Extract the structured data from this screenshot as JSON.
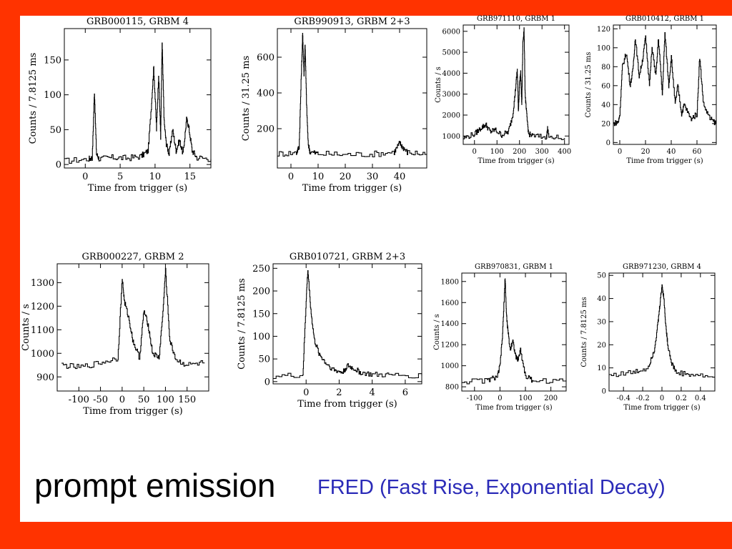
{
  "slide": {
    "title": "prompt emission",
    "subtitle": "FRED (Fast Rise, Exponential Decay)",
    "background_color": "#ff3300",
    "subtitle_color": "#2b2bb8"
  },
  "chart_data": [
    {
      "type": "line",
      "title": "GRB000115, GRBM 4",
      "xlabel": "Time from trigger (s)",
      "ylabel": "Counts / 7.8125 ms",
      "xlim": [
        -3,
        18
      ],
      "ylim": [
        -5,
        195
      ],
      "xticks": [
        0,
        5,
        10,
        15
      ],
      "yticks": [
        0,
        50,
        100,
        150
      ],
      "x": [
        -3,
        0.5,
        1,
        1.3,
        1.6,
        2,
        4,
        6,
        8,
        9,
        9.5,
        9.8,
        10.2,
        10.5,
        10.8,
        11,
        11.3,
        11.6,
        12,
        12.5,
        13,
        13.5,
        14,
        14.5,
        14.8,
        15.3,
        16,
        18
      ],
      "y": [
        5,
        8,
        10,
        105,
        15,
        8,
        10,
        9,
        12,
        20,
        90,
        140,
        50,
        130,
        40,
        175,
        60,
        30,
        15,
        50,
        20,
        35,
        15,
        65,
        55,
        20,
        10,
        8
      ]
    },
    {
      "type": "line",
      "title": "GRB990913, GRBM 2+3",
      "xlabel": "Time from trigger (s)",
      "ylabel": "Counts / 31.25 ms",
      "xlim": [
        -5,
        50
      ],
      "ylim": [
        -20,
        760
      ],
      "xticks": [
        0,
        10,
        20,
        30,
        40
      ],
      "yticks": [
        200,
        400,
        600
      ],
      "x": [
        -5,
        2,
        3,
        3.8,
        4.3,
        4.8,
        5.2,
        5.7,
        6.3,
        7,
        10,
        20,
        30,
        38,
        40,
        41,
        43,
        50
      ],
      "y": [
        60,
        65,
        100,
        500,
        730,
        500,
        680,
        350,
        120,
        70,
        60,
        55,
        58,
        70,
        120,
        100,
        65,
        60
      ]
    },
    {
      "type": "line",
      "title": "GRB971110, GRBM 1",
      "xlabel": "Time from trigger (s)",
      "ylabel": "Counts / s",
      "xlim": [
        -50,
        420
      ],
      "ylim": [
        600,
        6300
      ],
      "xticks": [
        0,
        100,
        200,
        300,
        400
      ],
      "yticks": [
        1000,
        2000,
        3000,
        4000,
        5000,
        6000
      ],
      "x": [
        -50,
        0,
        30,
        50,
        70,
        90,
        120,
        150,
        170,
        180,
        190,
        195,
        200,
        205,
        210,
        215,
        220,
        225,
        230,
        240,
        260,
        320,
        325,
        330,
        400
      ],
      "y": [
        900,
        1100,
        1400,
        1550,
        1200,
        1300,
        1050,
        1200,
        2000,
        3000,
        4200,
        2200,
        3500,
        4000,
        2500,
        5500,
        6100,
        3000,
        2200,
        1100,
        1000,
        950,
        1400,
        950,
        900
      ]
    },
    {
      "type": "line",
      "title": "GRB010412, GRBM 1",
      "xlabel": "Time from trigger (s)",
      "ylabel": "Counts / 31.25 ms",
      "xlim": [
        -5,
        75
      ],
      "ylim": [
        -2,
        124
      ],
      "xticks": [
        0,
        20,
        40,
        60
      ],
      "yticks": [
        0,
        20,
        40,
        60,
        80,
        100,
        120
      ],
      "x": [
        -5,
        -1,
        0,
        2,
        5,
        8,
        10,
        12,
        15,
        18,
        20,
        23,
        25,
        28,
        30,
        33,
        35,
        38,
        40,
        43,
        45,
        48,
        50,
        55,
        60,
        62,
        65,
        70,
        75
      ],
      "y": [
        20,
        22,
        30,
        80,
        95,
        60,
        75,
        110,
        70,
        90,
        112,
        60,
        100,
        70,
        110,
        50,
        115,
        60,
        90,
        40,
        60,
        30,
        40,
        25,
        30,
        90,
        40,
        25,
        20
      ]
    },
    {
      "type": "line",
      "title": "GRB000227, GRBM 2",
      "xlabel": "Time from trigger (s)",
      "ylabel": "Counts / s",
      "xlim": [
        -150,
        200
      ],
      "ylim": [
        840,
        1380
      ],
      "xticks": [
        -100,
        -50,
        0,
        50,
        100,
        150
      ],
      "yticks": [
        900,
        1000,
        1100,
        1200,
        1300
      ],
      "x": [
        -140,
        -100,
        -50,
        -10,
        0,
        5,
        15,
        25,
        40,
        50,
        60,
        70,
        85,
        95,
        100,
        110,
        125,
        150,
        190
      ],
      "y": [
        950,
        940,
        960,
        980,
        1320,
        1220,
        1150,
        1050,
        980,
        1180,
        1120,
        1000,
        980,
        1200,
        1350,
        1050,
        970,
        950,
        960
      ]
    },
    {
      "type": "line",
      "title": "GRB010721, GRBM 2+3",
      "xlabel": "Time from trigger (s)",
      "ylabel": "Counts / 7.8125 ms",
      "xlim": [
        -2,
        7
      ],
      "ylim": [
        -5,
        260
      ],
      "xticks": [
        0,
        2,
        4,
        6
      ],
      "yticks": [
        0,
        50,
        100,
        150,
        200,
        250
      ],
      "x": [
        -2,
        -0.2,
        0,
        0.1,
        0.3,
        0.5,
        0.8,
        1.2,
        1.7,
        2.2,
        2.5,
        2.8,
        3.3,
        4,
        5,
        7
      ],
      "y": [
        12,
        14,
        180,
        245,
        150,
        90,
        60,
        40,
        25,
        20,
        35,
        30,
        20,
        15,
        14,
        13
      ]
    },
    {
      "type": "line",
      "title": "GRB970831, GRBM 1",
      "xlabel": "Time from trigger (s)",
      "ylabel": "Counts / s",
      "xlim": [
        -150,
        260
      ],
      "ylim": [
        760,
        1880
      ],
      "xticks": [
        -100,
        0,
        100,
        200
      ],
      "yticks": [
        800,
        1000,
        1200,
        1400,
        1600,
        1800
      ],
      "x": [
        -150,
        -50,
        -10,
        0,
        10,
        20,
        25,
        30,
        40,
        50,
        60,
        70,
        80,
        100,
        130,
        260
      ],
      "y": [
        850,
        860,
        900,
        1000,
        1300,
        1850,
        1500,
        1350,
        1150,
        1250,
        1100,
        1050,
        1150,
        900,
        860,
        850
      ]
    },
    {
      "type": "line",
      "title": "GRB971230, GRBM 4",
      "xlabel": "Time from trigger (s)",
      "ylabel": "Counts / 7.8125 ms",
      "xlim": [
        -0.55,
        0.55
      ],
      "ylim": [
        0,
        51
      ],
      "xticks": [
        -0.4,
        -0.2,
        0.0,
        0.2,
        0.4
      ],
      "yticks": [
        0,
        10,
        20,
        30,
        40,
        50
      ],
      "x": [
        -0.55,
        -0.3,
        -0.15,
        -0.08,
        -0.04,
        -0.02,
        0.0,
        0.02,
        0.04,
        0.06,
        0.1,
        0.15,
        0.3,
        0.55
      ],
      "y": [
        7,
        8,
        10,
        18,
        30,
        38,
        46,
        40,
        28,
        20,
        12,
        8,
        7,
        6
      ]
    }
  ]
}
